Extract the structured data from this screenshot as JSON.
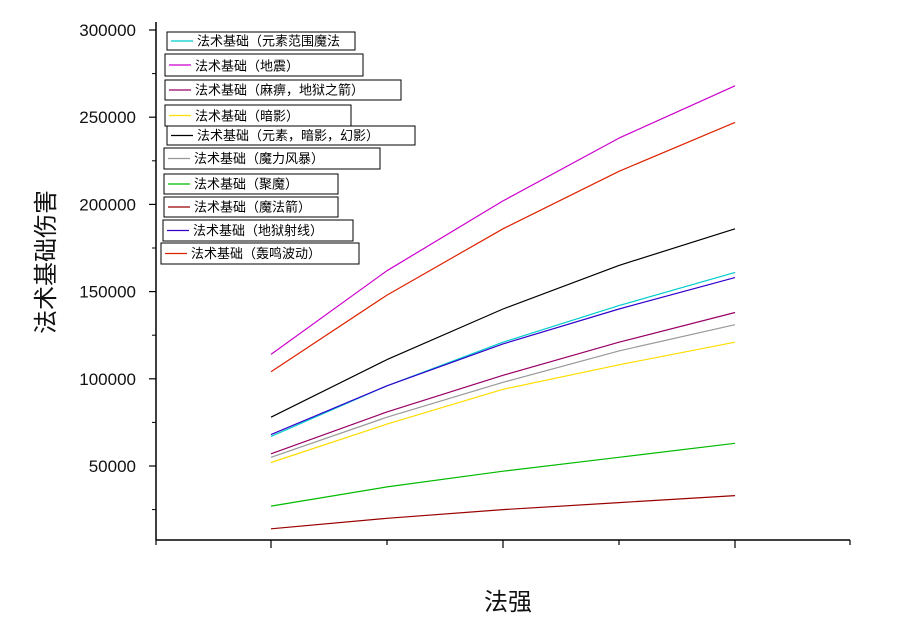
{
  "chart_data": {
    "type": "line",
    "title": "",
    "xlabel": "法强",
    "ylabel": "法术基础伤害",
    "ylim": [
      0,
      300000
    ],
    "y_ticks": [
      50000,
      100000,
      150000,
      200000,
      250000,
      300000
    ],
    "y_tick_labels": [
      "50000",
      "100000",
      "150000",
      "200000",
      "250000",
      "300000"
    ],
    "x_tick_labels": [],
    "grid": false,
    "legend_position": "top-left",
    "x": [
      0,
      1,
      2,
      3,
      4
    ],
    "series": [
      {
        "name": "法术基础（元素范围魔法",
        "color": "#00cccc",
        "values": [
          67000,
          96000,
          121000,
          142000,
          161000
        ]
      },
      {
        "name": "法术基础（地震）",
        "color": "#cc00cc",
        "values": [
          114000,
          162000,
          202000,
          238000,
          268000
        ]
      },
      {
        "name": "法术基础（麻痹，地狱之箭）",
        "color": "#990066",
        "values": [
          57000,
          81000,
          102000,
          121000,
          138000
        ]
      },
      {
        "name": "法术基础（暗影）",
        "color": "#ffdd00",
        "values": [
          52000,
          74000,
          94000,
          108000,
          121000
        ]
      },
      {
        "name": "法术基础（元素，暗影，幻影）",
        "color": "#000000",
        "values": [
          78000,
          111000,
          140000,
          165000,
          186000
        ]
      },
      {
        "name": "法术基础（魔力风暴）",
        "color": "#999999",
        "values": [
          55000,
          78000,
          98000,
          116000,
          131000
        ]
      },
      {
        "name": "法术基础（聚魔）",
        "color": "#00bb00",
        "values": [
          27000,
          38000,
          47000,
          55000,
          63000
        ]
      },
      {
        "name": "法术基础（魔法箭）",
        "color": "#990000",
        "values": [
          14000,
          20000,
          25000,
          29000,
          33000
        ]
      },
      {
        "name": "法术基础（地狱射线）",
        "color": "#3300cc",
        "values": [
          68000,
          96000,
          120000,
          140000,
          158000
        ]
      },
      {
        "name": "法术基础（轰鸣波动）",
        "color": "#dd2200",
        "values": [
          104000,
          148000,
          186000,
          219000,
          247000
        ]
      }
    ]
  }
}
